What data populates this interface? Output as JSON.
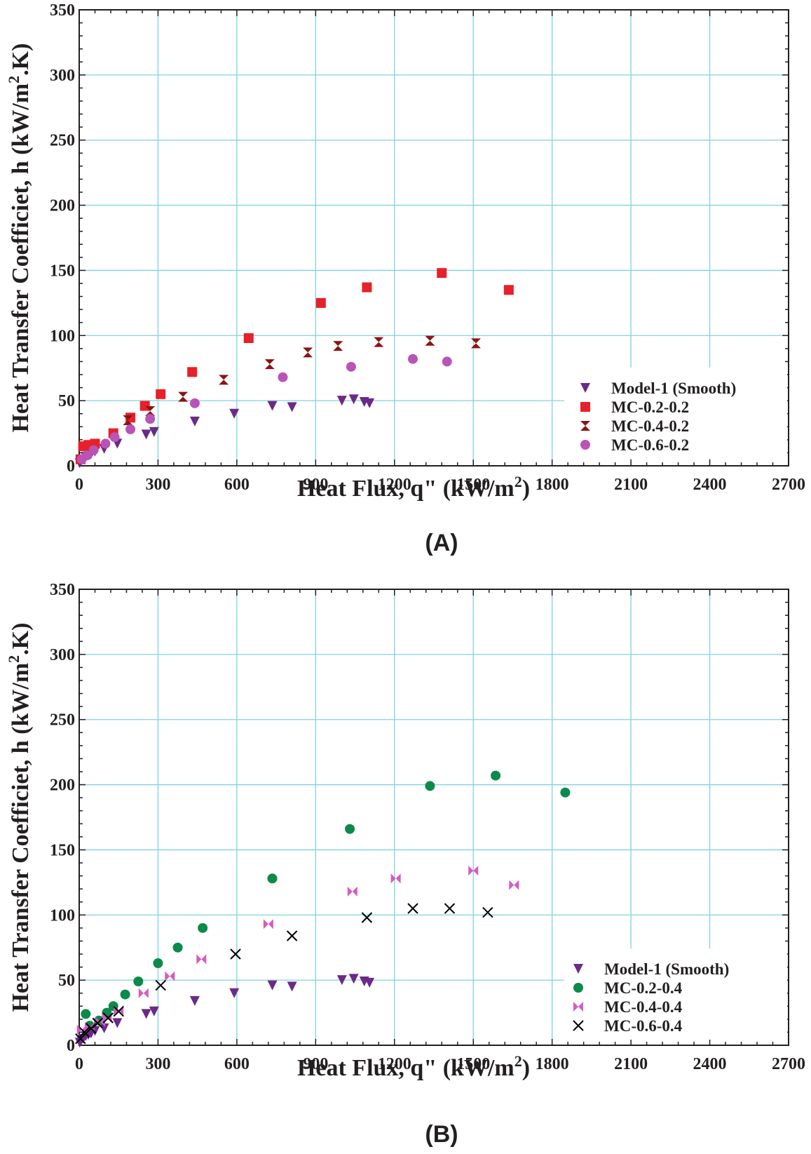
{
  "colors": {
    "grid": "#7fd3dc",
    "axis": "#231f20",
    "model1": "#6b2a86",
    "mc02": "#e8202a",
    "mc04": "#8b1414",
    "mc06": "#b854b8",
    "mc02b": "#0b8a4a",
    "mc04b": "#d45cc2",
    "mc06b": "#000000"
  },
  "chart_data": [
    {
      "type": "scatter",
      "panel_label": "(A)",
      "xlabel": "Heat Flux, q\" (kW/m",
      "xlabel_sup": "2",
      "xlabel_end": ")",
      "ylabel": "Heat Transfer Coefficiet, h (kW/m",
      "ylabel_sup": "2",
      "ylabel_end": ".K)",
      "xlim": [
        0,
        2700
      ],
      "ylim": [
        0,
        350
      ],
      "xticks": [
        "0",
        "300",
        "600",
        "900",
        "1200",
        "1500",
        "1800",
        "2100",
        "2400",
        "2700"
      ],
      "yticks": [
        "0",
        "50",
        "100",
        "150",
        "200",
        "250",
        "300",
        "350"
      ],
      "grid": true,
      "legend_position": "bottom-right",
      "series": [
        {
          "name": "Model-1 (Smooth)",
          "marker": "triangle-down",
          "color": "#6b2a86",
          "points": [
            [
              2,
              2
            ],
            [
              8,
              4
            ],
            [
              15,
              5
            ],
            [
              25,
              7
            ],
            [
              35,
              8
            ],
            [
              45,
              9
            ],
            [
              60,
              11
            ],
            [
              95,
              13
            ],
            [
              145,
              17
            ],
            [
              255,
              24
            ],
            [
              285,
              26
            ],
            [
              440,
              34
            ],
            [
              590,
              40
            ],
            [
              735,
              46
            ],
            [
              810,
              45
            ],
            [
              1000,
              50
            ],
            [
              1045,
              51
            ],
            [
              1085,
              49
            ],
            [
              1105,
              48
            ]
          ]
        },
        {
          "name": "MC-0.2-0.2",
          "marker": "square",
          "color": "#e8202a",
          "points": [
            [
              5,
              5
            ],
            [
              15,
              15
            ],
            [
              35,
              16
            ],
            [
              60,
              17
            ],
            [
              130,
              25
            ],
            [
              195,
              37
            ],
            [
              250,
              46
            ],
            [
              310,
              55
            ],
            [
              430,
              72
            ],
            [
              645,
              98
            ],
            [
              920,
              125
            ],
            [
              1095,
              137
            ],
            [
              1380,
              148
            ],
            [
              1635,
              135
            ]
          ]
        },
        {
          "name": "MC-0.4-0.2",
          "marker": "hourglass",
          "color": "#8b1414",
          "points": [
            [
              185,
              35
            ],
            [
              270,
              42
            ],
            [
              395,
              53
            ],
            [
              550,
              66
            ],
            [
              725,
              78
            ],
            [
              870,
              87
            ],
            [
              985,
              92
            ],
            [
              1140,
              95
            ],
            [
              1335,
              96
            ],
            [
              1510,
              94
            ]
          ]
        },
        {
          "name": "MC-0.6-0.2",
          "marker": "circle",
          "color": "#b854b8",
          "points": [
            [
              10,
              5
            ],
            [
              30,
              8
            ],
            [
              55,
              12
            ],
            [
              100,
              17
            ],
            [
              135,
              22
            ],
            [
              195,
              28
            ],
            [
              270,
              36
            ],
            [
              440,
              48
            ],
            [
              775,
              68
            ],
            [
              1035,
              76
            ],
            [
              1270,
              82
            ],
            [
              1400,
              80
            ]
          ]
        }
      ]
    },
    {
      "type": "scatter",
      "panel_label": "(B)",
      "xlabel": "Heat Flux, q\" (kW/m",
      "xlabel_sup": "2",
      "xlabel_end": ")",
      "ylabel": "Heat Transfer Coefficiet, h (kW/m",
      "ylabel_sup": "2",
      "ylabel_end": ".K)",
      "xlim": [
        0,
        2700
      ],
      "ylim": [
        0,
        350
      ],
      "xticks": [
        "0",
        "300",
        "600",
        "900",
        "1200",
        "1500",
        "1800",
        "2100",
        "2400",
        "2700"
      ],
      "yticks": [
        "0",
        "50",
        "100",
        "150",
        "200",
        "250",
        "300",
        "350"
      ],
      "grid": true,
      "legend_position": "bottom-right",
      "series": [
        {
          "name": "Model-1 (Smooth)",
          "marker": "triangle-down",
          "color": "#6b2a86",
          "points": [
            [
              2,
              2
            ],
            [
              8,
              4
            ],
            [
              15,
              5
            ],
            [
              25,
              7
            ],
            [
              35,
              8
            ],
            [
              45,
              9
            ],
            [
              60,
              11
            ],
            [
              95,
              13
            ],
            [
              145,
              17
            ],
            [
              255,
              24
            ],
            [
              285,
              26
            ],
            [
              440,
              34
            ],
            [
              590,
              40
            ],
            [
              735,
              46
            ],
            [
              810,
              45
            ],
            [
              1000,
              50
            ],
            [
              1045,
              51
            ],
            [
              1085,
              49
            ],
            [
              1105,
              48
            ]
          ]
        },
        {
          "name": "MC-0.2-0.4",
          "marker": "circle",
          "color": "#0b8a4a",
          "points": [
            [
              25,
              24
            ],
            [
              40,
              15
            ],
            [
              75,
              19
            ],
            [
              105,
              25
            ],
            [
              130,
              30
            ],
            [
              175,
              39
            ],
            [
              225,
              49
            ],
            [
              300,
              63
            ],
            [
              375,
              75
            ],
            [
              470,
              90
            ],
            [
              735,
              128
            ],
            [
              1030,
              166
            ],
            [
              1335,
              199
            ],
            [
              1585,
              207
            ],
            [
              1850,
              194
            ]
          ]
        },
        {
          "name": "MC-0.4-0.4",
          "marker": "bowtie",
          "color": "#d45cc2",
          "points": [
            [
              10,
              12
            ],
            [
              40,
              14
            ],
            [
              80,
              18
            ],
            [
              105,
              21
            ],
            [
              150,
              27
            ],
            [
              245,
              40
            ],
            [
              345,
              53
            ],
            [
              465,
              66
            ],
            [
              720,
              93
            ],
            [
              1040,
              118
            ],
            [
              1205,
              128
            ],
            [
              1500,
              134
            ],
            [
              1655,
              123
            ]
          ]
        },
        {
          "name": "MC-0.6-0.4",
          "marker": "x",
          "color": "#000000",
          "points": [
            [
              5,
              5
            ],
            [
              20,
              10
            ],
            [
              45,
              13
            ],
            [
              70,
              17
            ],
            [
              110,
              21
            ],
            [
              150,
              26
            ],
            [
              310,
              46
            ],
            [
              595,
              70
            ],
            [
              810,
              84
            ],
            [
              1095,
              98
            ],
            [
              1270,
              105
            ],
            [
              1410,
              105
            ],
            [
              1555,
              102
            ]
          ]
        }
      ]
    }
  ]
}
